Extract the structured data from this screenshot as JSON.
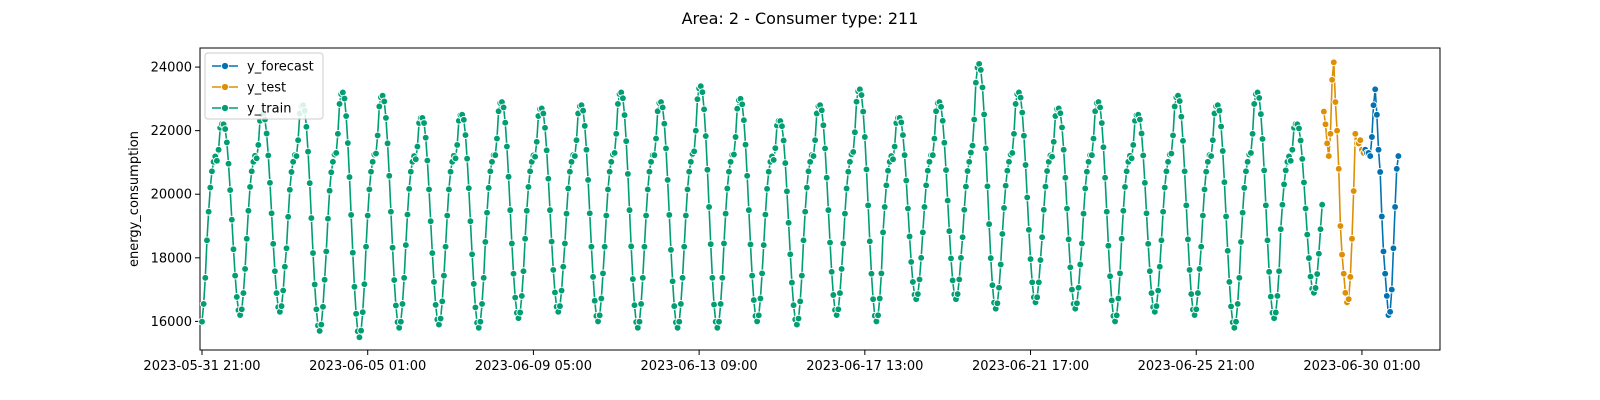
{
  "chart_data": {
    "type": "line",
    "title": "Area: 2 - Consumer type: 211",
    "xlabel": "",
    "ylabel": "energy_consumption",
    "x_start": "2023-05-31 21:00",
    "x_end": "2023-07-01 06:00",
    "x_ticks": [
      "2023-05-31 21:00",
      "2023-06-05 01:00",
      "2023-06-09 05:00",
      "2023-06-13 09:00",
      "2023-06-17 13:00",
      "2023-06-21 17:00",
      "2023-06-25 21:00",
      "2023-06-30 01:00"
    ],
    "ylim": [
      15100,
      24600
    ],
    "y_ticks": [
      16000,
      18000,
      20000,
      22000,
      24000
    ],
    "grid": false,
    "legend": "top-left",
    "series": [
      {
        "name": "y_forecast",
        "color": "#0173b2",
        "x_start": "2023-06-30 03:00",
        "x_end": "2023-07-01 02:00",
        "values": [
          21400,
          21300,
          21300,
          21200,
          21800,
          22800,
          23300,
          22500,
          21400,
          20700,
          19300,
          18200,
          17500,
          16800,
          16200,
          16300,
          17000,
          18300,
          19600,
          20800,
          21200
        ]
      },
      {
        "name": "y_test",
        "color": "#de8f05",
        "x_start": "2023-06-29 02:00",
        "x_end": "2023-06-30 02:00",
        "values": [
          22600,
          22200,
          21600,
          21200,
          21900,
          23600,
          24150,
          22900,
          22000,
          20800,
          19000,
          18100,
          17500,
          16900,
          16600,
          16700,
          17400,
          18600,
          20100,
          21900,
          21600,
          21600,
          21700,
          21400,
          21300
        ]
      },
      {
        "name": "y_train",
        "color": "#029e73",
        "x_start": "2023-05-31 21:00",
        "x_end": "2023-06-29 01:00",
        "daily_peak": [
          22600,
          22200,
          22500,
          22800,
          23200,
          23100,
          22400,
          22500,
          22900,
          22700,
          22800,
          23200,
          22900,
          23400,
          23000,
          22300,
          22800,
          23300,
          22400,
          22900,
          24100,
          23200,
          22700,
          22900,
          22500,
          23100,
          22800,
          23200,
          22200
        ],
        "daily_trough": [
          15800,
          16200,
          16300,
          15700,
          15500,
          15800,
          15900,
          15800,
          16100,
          16300,
          16000,
          15800,
          15800,
          15800,
          16000,
          15900,
          16200,
          16000,
          16700,
          16700,
          16400,
          16600,
          16400,
          16000,
          16300,
          16200,
          15800,
          16100,
          16900
        ]
      }
    ]
  }
}
